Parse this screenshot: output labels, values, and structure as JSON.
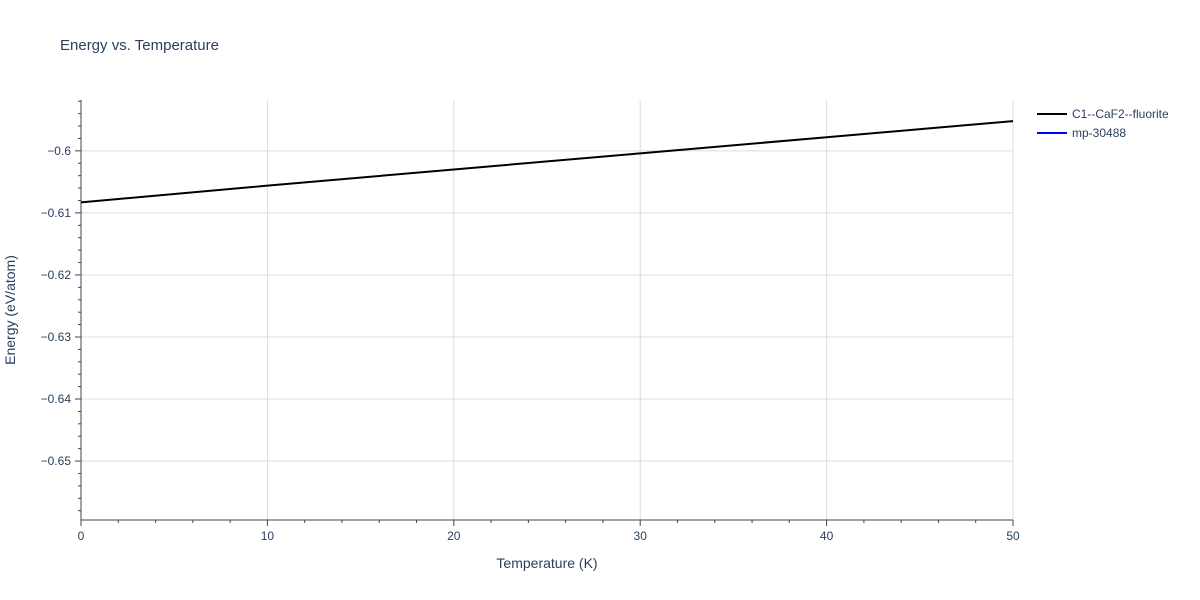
{
  "chart_data": {
    "type": "line",
    "title": "Energy vs. Temperature",
    "xlabel": "Temperature (K)",
    "ylabel": "Energy (eV/atom)",
    "xlim": [
      0,
      50
    ],
    "ylim": [
      -0.6595,
      -0.5918
    ],
    "x_ticks": [
      0,
      10,
      20,
      30,
      40,
      50
    ],
    "x_tick_labels": [
      "0",
      "10",
      "20",
      "30",
      "40",
      "50"
    ],
    "y_ticks": [
      -0.6,
      -0.61,
      -0.62,
      -0.63,
      -0.64,
      -0.65
    ],
    "y_tick_labels": [
      "−0.6",
      "−0.61",
      "−0.62",
      "−0.63",
      "−0.64",
      "−0.65"
    ],
    "grid": true,
    "legend_position": "top-right",
    "series": [
      {
        "name": "C1--CaF2--fluorite",
        "color": "#000000",
        "x": [
          0,
          10,
          20,
          30,
          40,
          50
        ],
        "y": [
          -0.6083,
          -0.6056,
          -0.603,
          -0.6004,
          -0.5978,
          -0.5952
        ]
      },
      {
        "name": "mp-30488",
        "color": "#0000ff",
        "x": [],
        "y": []
      }
    ]
  }
}
